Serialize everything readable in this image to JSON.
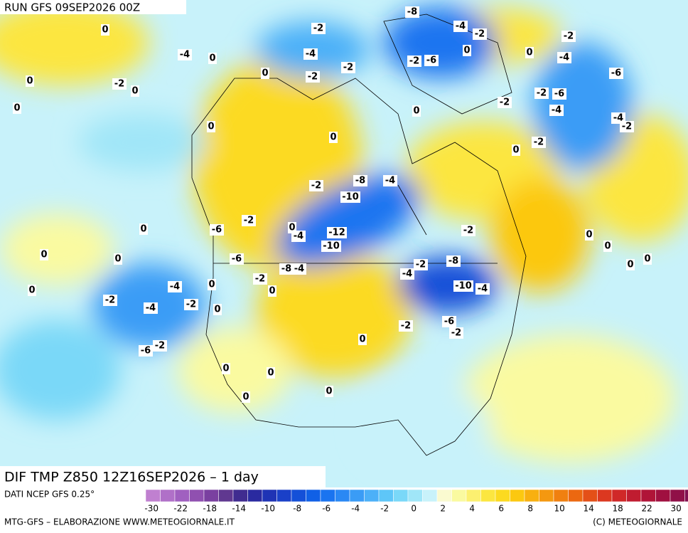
{
  "header": {
    "run": "RUN GFS 09SEP2026 00Z"
  },
  "map": {
    "title": "DIF TMP Z850 12Z16SEP2026 – 1 day",
    "contour_labels": [
      -8,
      -4,
      -2,
      -2,
      -4,
      -4,
      -2,
      -2,
      0,
      -6,
      -2,
      -2,
      -4,
      0,
      -6,
      -4,
      -2,
      -6,
      -2,
      -4,
      -2,
      0,
      -2,
      0,
      -2,
      0,
      -8,
      -4,
      -10,
      -2,
      -4,
      -12,
      -10,
      0,
      -6,
      -2,
      -6,
      -2,
      -8,
      -4,
      0,
      -4,
      -2,
      -8,
      -10,
      -4,
      -6,
      -2,
      -2,
      -4,
      -4,
      -2,
      -2,
      -6,
      -2,
      0,
      0,
      0,
      0,
      0,
      0,
      0,
      0,
      0,
      0,
      0,
      0,
      0,
      0,
      0,
      0,
      0,
      0,
      -2,
      0,
      0,
      0,
      0
    ]
  },
  "colorbar": {
    "source": "DATI NCEP GFS 0.25°",
    "colors": [
      "#c080d0",
      "#b070c8",
      "#a060c0",
      "#9050b0",
      "#7a40a0",
      "#603890",
      "#402c90",
      "#2a2aa0",
      "#1f33b5",
      "#1a40c8",
      "#1450d8",
      "#1060e6",
      "#1a74f0",
      "#2a88f4",
      "#3a9cf6",
      "#4cb0f8",
      "#5ec6f8",
      "#7ad8f8",
      "#a0e6f8",
      "#c8f2fa",
      "#fafad0",
      "#fafaa0",
      "#fcf070",
      "#fce640",
      "#fcda20",
      "#fcc810",
      "#f8b010",
      "#f49810",
      "#f08010",
      "#ec6810",
      "#e45018",
      "#dc3820",
      "#d02828",
      "#c01c30",
      "#b01438",
      "#a01040",
      "#901048",
      "#801050"
    ],
    "ticks": [
      -30,
      -22,
      -18,
      -14,
      -10,
      -8,
      -6,
      -4,
      -2,
      0,
      2,
      4,
      6,
      8,
      10,
      14,
      18,
      22,
      30
    ]
  },
  "footer": {
    "left": "MTG-GFS – ELABORAZIONE WWW.METEOGIORNALE.IT",
    "right": "(C) METEOGIORNALE"
  }
}
